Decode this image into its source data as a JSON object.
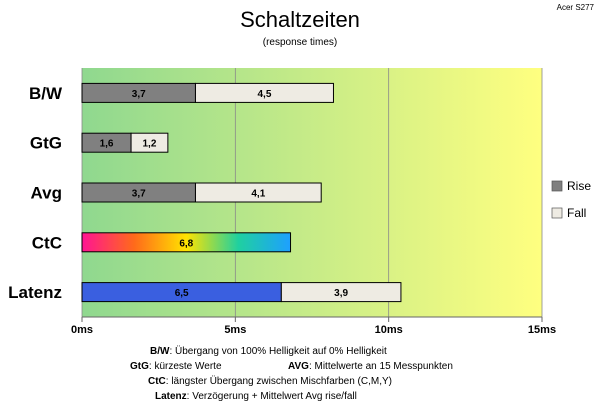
{
  "chart_data": {
    "type": "bar",
    "stacked": true,
    "orientation": "horizontal",
    "title": "Schaltzeiten",
    "subtitle": "(response times)",
    "watermark": "Acer S277",
    "categories": [
      "B/W",
      "GtG",
      "Avg",
      "CtC",
      "Latenz"
    ],
    "series": [
      {
        "name": "Rise",
        "values": [
          3.7,
          1.6,
          3.7,
          6.8,
          6.5
        ],
        "labels": [
          "3,7",
          "1,6",
          "3,7",
          "6,8",
          "6,5"
        ]
      },
      {
        "name": "Fall",
        "values": [
          4.5,
          1.2,
          4.1,
          null,
          3.9
        ],
        "labels": [
          "4,5",
          "1,2",
          "4,1",
          "",
          "3,9"
        ]
      }
    ],
    "xlim": [
      0,
      15
    ],
    "xticks": [
      "0ms",
      "5ms",
      "10ms",
      "15ms"
    ],
    "grid": true,
    "legend_position": "right",
    "background_gradient": [
      "#8fd88f",
      "#ffff80"
    ],
    "colors": {
      "rise": "#808080",
      "fall": "#eeebe3",
      "latency_rise": "#3a5fe0"
    },
    "ctc_rainbow": [
      "#ff1493",
      "#ff6a1a",
      "#ffe300",
      "#1fd0a0",
      "#1ea0ff"
    ],
    "notes": [
      {
        "key": "B/W",
        "text": ":  Übergang von 100% Helligkeit auf 0% Helligkeit"
      },
      {
        "key": "GtG",
        "text": ": kürzeste  Werte",
        "key2": "AVG",
        "text2": ": Mittelwerte  an 15 Messpunkten"
      },
      {
        "key": "CtC",
        "text": ": längster Übergang  zwischen Mischfarben  (C,M,Y)"
      },
      {
        "key": "Latenz",
        "text": ": Verzögerung  + Mittelwert  Avg rise/fall"
      }
    ]
  }
}
